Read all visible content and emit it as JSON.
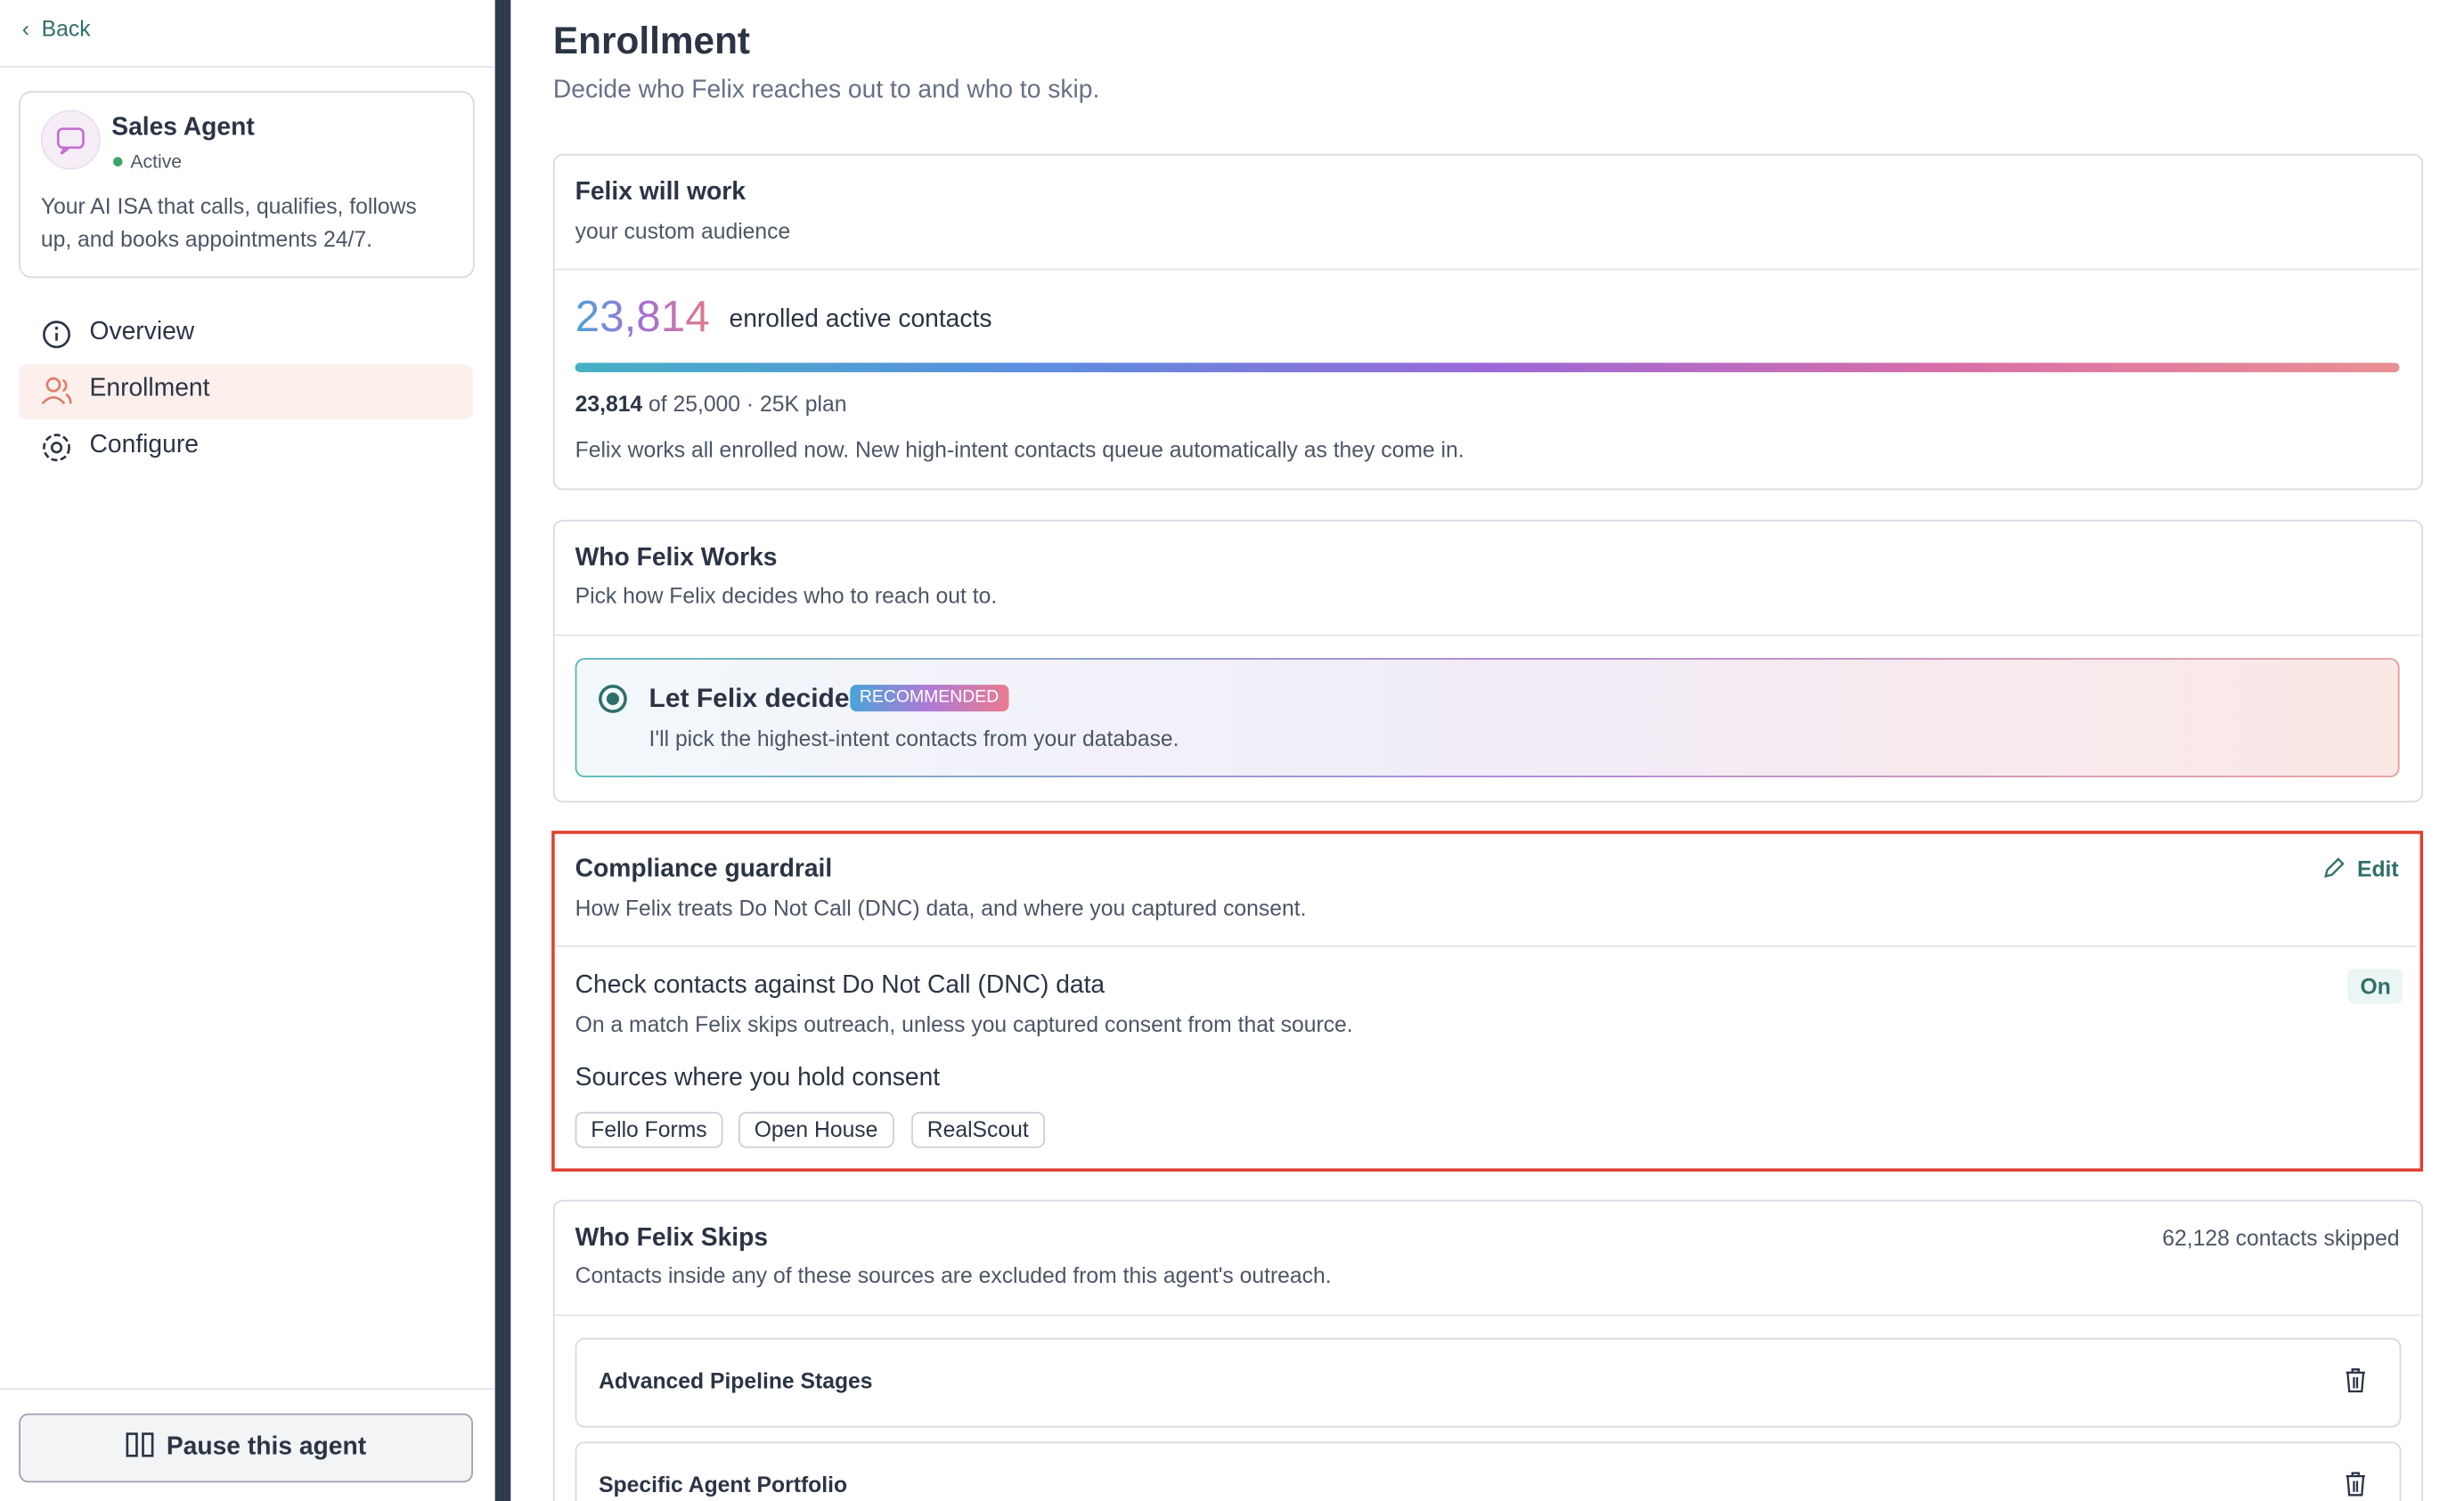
{
  "sidebar": {
    "back": "Back",
    "agent": {
      "name": "Sales Agent",
      "status": "Active",
      "description": "Your AI ISA that calls, qualifies, follows up, and books appointments 24/7."
    },
    "nav": [
      "Overview",
      "Enrollment",
      "Configure"
    ],
    "pause": "Pause this agent"
  },
  "header": {
    "title": "Enrollment",
    "subtitle": "Decide who Felix reaches out to and who to skip."
  },
  "work": {
    "title": "Felix will work",
    "subtitle": "your custom audience",
    "count": "23,814",
    "count_label": "enrolled active contacts",
    "usage_count": "23,814",
    "usage_rest": "of 25,000 · 25K plan",
    "note": "Felix works all enrolled now. New high-intent contacts queue automatically as they come in."
  },
  "who_works": {
    "title": "Who Felix Works",
    "subtitle": "Pick how Felix decides who to reach out to.",
    "option": {
      "label": "Let Felix decide",
      "badge": "RECOMMENDED",
      "description": "I'll pick the highest-intent contacts from your database."
    }
  },
  "compliance": {
    "title": "Compliance guardrail",
    "edit": "Edit",
    "subtitle": "How Felix treats Do Not Call (DNC) data, and where you captured consent.",
    "check_title": "Check contacts against Do Not Call (DNC) data",
    "check_state": "On",
    "check_description": "On a match Felix skips outreach, unless you captured consent from that source.",
    "sources_title": "Sources where you hold consent",
    "sources": [
      "Fello Forms",
      "Open House",
      "RealScout"
    ]
  },
  "skips": {
    "title": "Who Felix Skips",
    "count": "62,128 contacts skipped",
    "subtitle": "Contacts inside any of these sources are excluded from this agent's outreach.",
    "items": [
      "Advanced Pipeline Stages",
      "Specific Agent Portfolio"
    ]
  }
}
